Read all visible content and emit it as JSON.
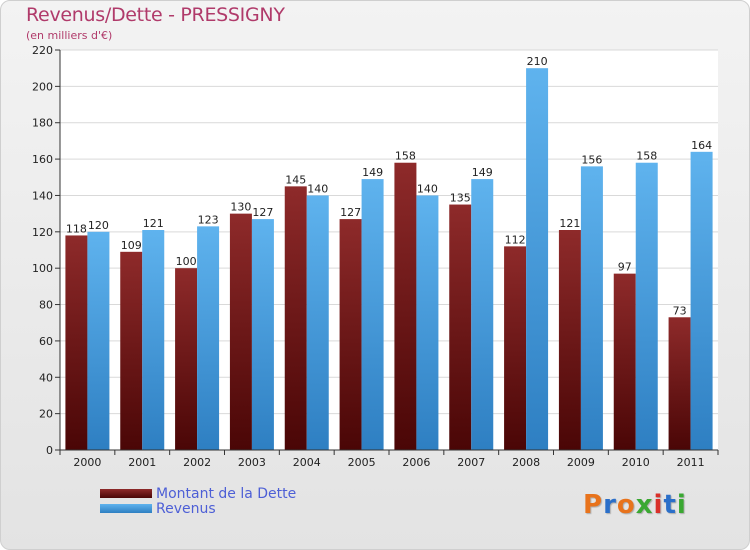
{
  "header": {
    "title": "Revenus/Dette - PRESSIGNY",
    "subtitle": "(en milliers d'€)"
  },
  "chart_data": {
    "type": "bar",
    "categories": [
      "2000",
      "2001",
      "2002",
      "2003",
      "2004",
      "2005",
      "2006",
      "2007",
      "2008",
      "2009",
      "2010",
      "2011"
    ],
    "series": [
      {
        "name": "Montant de la Dette",
        "color": "#7a1a1a",
        "values": [
          118,
          109,
          100,
          130,
          145,
          127,
          158,
          135,
          112,
          121,
          97,
          73
        ]
      },
      {
        "name": "Revenus",
        "color": "#4aa3e6",
        "values": [
          120,
          121,
          123,
          127,
          140,
          149,
          140,
          149,
          210,
          156,
          158,
          164
        ]
      }
    ],
    "ylim": [
      0,
      220
    ],
    "yticks": [
      0,
      20,
      40,
      60,
      80,
      100,
      120,
      140,
      160,
      180,
      200,
      220
    ],
    "grid": true,
    "legend": "bottom-left"
  },
  "logo": {
    "text": "Proxiti",
    "letter_colors": [
      "#e8731c",
      "#2b6fc9",
      "#e8731c",
      "#3aa832",
      "#d9302a",
      "#2b6fc9",
      "#3aa832"
    ]
  }
}
